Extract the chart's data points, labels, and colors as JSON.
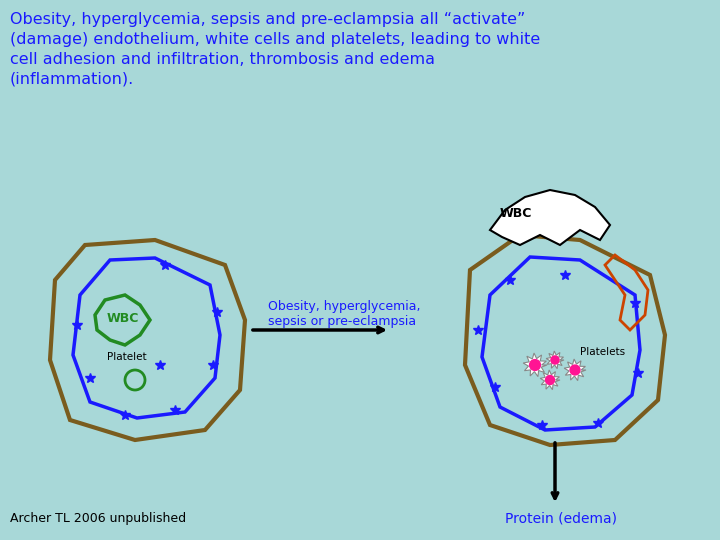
{
  "bg_color": "#a8d8d8",
  "title_text": "Obesity, hyperglycemia, sepsis and pre-eclampsia all “activate”\n(damage) endothelium, white cells and platelets, leading to white\ncell adhesion and infiltration, thrombosis and edema\n(inflammation).",
  "title_color": "#1a1aff",
  "title_fontsize": 11.5,
  "arrow_label": "Obesity, hyperglycemia,\nsepsis or pre-eclampsia",
  "arrow_color": "#000000",
  "arrow_label_color": "#1a1aff",
  "protein_label": "Protein (edema)",
  "protein_label_color": "#1a1aff",
  "footer": "Archer TL 2006 unpublished",
  "footer_color": "#000000",
  "cell1_outer_color": "#7a5c1e",
  "cell1_inner_color": "#1a1aff",
  "wbc1_color": "#228b22",
  "platelet1_color": "#228b22",
  "cell2_outer_color": "#7a5c1e",
  "cell2_inner_color": "#1a1aff",
  "wbc2_color": "#000000",
  "wbc2_fill": "#ffffff",
  "platelet2_color": "#ff1493",
  "star_color": "#1a1aff"
}
